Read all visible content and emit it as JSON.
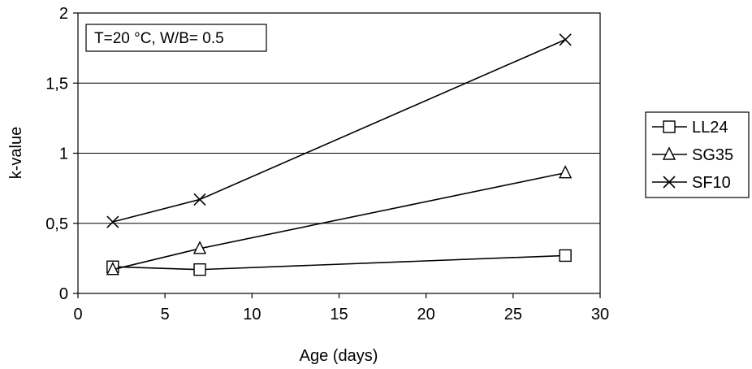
{
  "chart_data": {
    "type": "line",
    "title": "",
    "annotation": "T=20 °C, W/B= 0.5",
    "xlabel": "Age (days)",
    "ylabel": "k-value",
    "xlim": [
      0,
      30
    ],
    "ylim": [
      0,
      2
    ],
    "x_ticks": [
      0,
      5,
      10,
      15,
      20,
      25,
      30
    ],
    "y_ticks": [
      0,
      0.5,
      1,
      1.5,
      2
    ],
    "x_tick_labels": [
      "0",
      "5",
      "10",
      "15",
      "20",
      "25",
      "30"
    ],
    "y_tick_labels": [
      "0",
      "0,5",
      "1",
      "1,5",
      "2"
    ],
    "grid": "horizontal",
    "legend_position": "right",
    "series": [
      {
        "name": "LL24",
        "marker": "square",
        "x": [
          2,
          7,
          28
        ],
        "values": [
          0.19,
          0.17,
          0.27
        ]
      },
      {
        "name": "SG35",
        "marker": "triangle",
        "x": [
          2,
          7,
          28
        ],
        "values": [
          0.17,
          0.32,
          0.86
        ]
      },
      {
        "name": "SF10",
        "marker": "cross",
        "x": [
          2,
          7,
          28
        ],
        "values": [
          0.51,
          0.67,
          1.81
        ]
      }
    ]
  }
}
